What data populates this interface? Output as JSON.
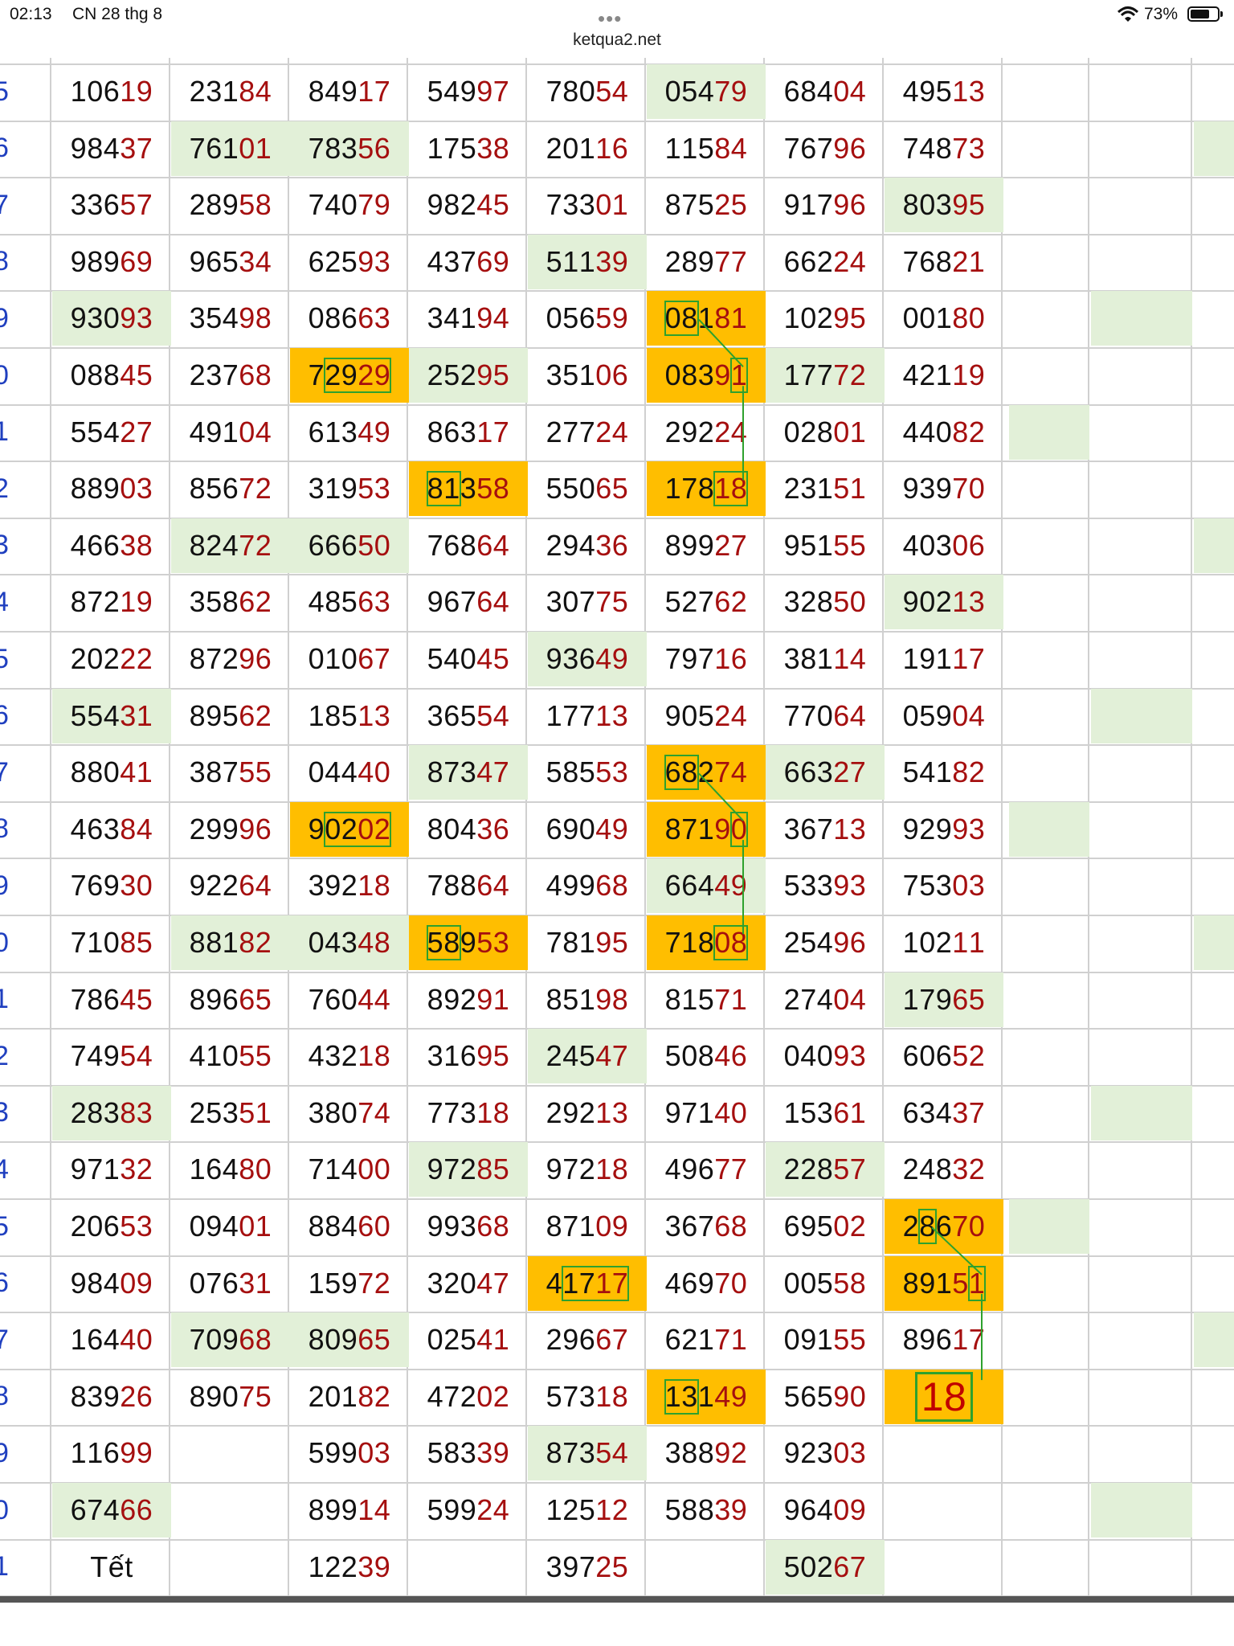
{
  "status_bar": {
    "time": "02:13",
    "date": "CN 28 thg 8",
    "dots": "•••",
    "url": "ketqua2.net",
    "battery": "73%",
    "wifi_icon": "wifi-icon",
    "battery_icon": "battery-icon",
    "battery_level": 0.73
  },
  "colors": {
    "green": "#e2f0d8",
    "orange": "#ffbe00",
    "red_digits": "#a50f0f",
    "blue_labels": "#1f3fbf",
    "link_green": "#2ea12e"
  },
  "rows": [
    {
      "label": "5",
      "cells": [
        {
          "v": "10619"
        },
        {
          "v": "23184"
        },
        {
          "v": "84917"
        },
        {
          "v": "54997"
        },
        {
          "v": "78054"
        },
        {
          "v": "05479",
          "bg": "green"
        },
        {
          "v": "68404"
        },
        {
          "v": "49513"
        }
      ]
    },
    {
      "label": "6",
      "cells": [
        {
          "v": "98437"
        },
        {
          "v": "76101",
          "bg": "green"
        },
        {
          "v": "78356",
          "bg": "green"
        },
        {
          "v": "17538"
        },
        {
          "v": "20116"
        },
        {
          "v": "11584"
        },
        {
          "v": "76796"
        },
        {
          "v": "74873"
        }
      ],
      "extra2": "green"
    },
    {
      "label": "7",
      "cells": [
        {
          "v": "33657"
        },
        {
          "v": "28958"
        },
        {
          "v": "74079"
        },
        {
          "v": "98245"
        },
        {
          "v": "73301"
        },
        {
          "v": "87525"
        },
        {
          "v": "91796"
        },
        {
          "v": "80395",
          "bg": "green"
        }
      ]
    },
    {
      "label": "8",
      "cells": [
        {
          "v": "98969"
        },
        {
          "v": "96534"
        },
        {
          "v": "62593"
        },
        {
          "v": "43769"
        },
        {
          "v": "51139",
          "bg": "green"
        },
        {
          "v": "28977"
        },
        {
          "v": "66224"
        },
        {
          "v": "76821"
        }
      ]
    },
    {
      "label": "9",
      "cells": [
        {
          "v": "93093",
          "bg": "green"
        },
        {
          "v": "35498"
        },
        {
          "v": "08663"
        },
        {
          "v": "34194"
        },
        {
          "v": "05659"
        },
        {
          "v": "08181",
          "bg": "orange",
          "box": [
            0,
            2
          ]
        },
        {
          "v": "10295"
        },
        {
          "v": "00180"
        }
      ],
      "extra1": "green"
    },
    {
      "label": "0",
      "cells": [
        {
          "v": "08845"
        },
        {
          "v": "23768"
        },
        {
          "v": "72929",
          "bg": "orange",
          "box": [
            1,
            5
          ]
        },
        {
          "v": "25295",
          "bg": "green"
        },
        {
          "v": "35106"
        },
        {
          "v": "08391",
          "bg": "orange",
          "box": [
            4,
            5
          ]
        },
        {
          "v": "17772",
          "bg": "green"
        },
        {
          "v": "42119"
        }
      ]
    },
    {
      "label": "1",
      "cells": [
        {
          "v": "55427"
        },
        {
          "v": "49104"
        },
        {
          "v": "61349"
        },
        {
          "v": "86317"
        },
        {
          "v": "27724"
        },
        {
          "v": "29224"
        },
        {
          "v": "02801"
        },
        {
          "v": "44082"
        }
      ],
      "extra0": "green"
    },
    {
      "label": "2",
      "cells": [
        {
          "v": "88903"
        },
        {
          "v": "85672"
        },
        {
          "v": "31953"
        },
        {
          "v": "81358",
          "bg": "orange",
          "box": [
            0,
            2
          ]
        },
        {
          "v": "55065"
        },
        {
          "v": "17818",
          "bg": "orange",
          "box": [
            3,
            5
          ]
        },
        {
          "v": "23151"
        },
        {
          "v": "93970"
        }
      ]
    },
    {
      "label": "3",
      "cells": [
        {
          "v": "46638"
        },
        {
          "v": "82472",
          "bg": "green"
        },
        {
          "v": "66650",
          "bg": "green"
        },
        {
          "v": "76864"
        },
        {
          "v": "29436"
        },
        {
          "v": "89927"
        },
        {
          "v": "95155"
        },
        {
          "v": "40306"
        }
      ],
      "extra2": "green"
    },
    {
      "label": "4",
      "cells": [
        {
          "v": "87219"
        },
        {
          "v": "35862"
        },
        {
          "v": "48563"
        },
        {
          "v": "96764"
        },
        {
          "v": "30775"
        },
        {
          "v": "52762"
        },
        {
          "v": "32850"
        },
        {
          "v": "90213",
          "bg": "green"
        }
      ]
    },
    {
      "label": "5",
      "cells": [
        {
          "v": "20222"
        },
        {
          "v": "87296"
        },
        {
          "v": "01067"
        },
        {
          "v": "54045"
        },
        {
          "v": "93649",
          "bg": "green"
        },
        {
          "v": "79716"
        },
        {
          "v": "38114"
        },
        {
          "v": "19117"
        }
      ]
    },
    {
      "label": "6",
      "cells": [
        {
          "v": "55431",
          "bg": "green"
        },
        {
          "v": "89562"
        },
        {
          "v": "18513"
        },
        {
          "v": "36554"
        },
        {
          "v": "17713"
        },
        {
          "v": "90524"
        },
        {
          "v": "77064"
        },
        {
          "v": "05904"
        }
      ],
      "extra1": "green"
    },
    {
      "label": "7",
      "cells": [
        {
          "v": "88041"
        },
        {
          "v": "38755"
        },
        {
          "v": "04440"
        },
        {
          "v": "87347",
          "bg": "green"
        },
        {
          "v": "58553"
        },
        {
          "v": "68274",
          "bg": "orange",
          "box": [
            0,
            2
          ]
        },
        {
          "v": "66327",
          "bg": "green"
        },
        {
          "v": "54182"
        }
      ]
    },
    {
      "label": "8",
      "cells": [
        {
          "v": "46384"
        },
        {
          "v": "29996"
        },
        {
          "v": "90202",
          "bg": "orange",
          "box": [
            1,
            5
          ]
        },
        {
          "v": "80436"
        },
        {
          "v": "69049"
        },
        {
          "v": "87190",
          "bg": "orange",
          "box": [
            4,
            5
          ]
        },
        {
          "v": "36713"
        },
        {
          "v": "92993"
        }
      ],
      "extra0": "green"
    },
    {
      "label": "9",
      "cells": [
        {
          "v": "76930"
        },
        {
          "v": "92264"
        },
        {
          "v": "39218"
        },
        {
          "v": "78864"
        },
        {
          "v": "49968"
        },
        {
          "v": "66449",
          "bg": "green"
        },
        {
          "v": "53393"
        },
        {
          "v": "75303"
        }
      ]
    },
    {
      "label": "0",
      "cells": [
        {
          "v": "71085"
        },
        {
          "v": "88182",
          "bg": "green"
        },
        {
          "v": "04348",
          "bg": "green"
        },
        {
          "v": "58953",
          "bg": "orange",
          "box": [
            0,
            2
          ]
        },
        {
          "v": "78195"
        },
        {
          "v": "71808",
          "bg": "orange",
          "box": [
            3,
            5
          ]
        },
        {
          "v": "25496"
        },
        {
          "v": "10211"
        }
      ],
      "extra2": "green"
    },
    {
      "label": "1",
      "cells": [
        {
          "v": "78645"
        },
        {
          "v": "89665"
        },
        {
          "v": "76044"
        },
        {
          "v": "89291"
        },
        {
          "v": "85198"
        },
        {
          "v": "81571"
        },
        {
          "v": "27404"
        },
        {
          "v": "17965",
          "bg": "green"
        }
      ]
    },
    {
      "label": "2",
      "cells": [
        {
          "v": "74954"
        },
        {
          "v": "41055"
        },
        {
          "v": "43218"
        },
        {
          "v": "31695"
        },
        {
          "v": "24547",
          "bg": "green"
        },
        {
          "v": "50846"
        },
        {
          "v": "04093"
        },
        {
          "v": "60652"
        }
      ]
    },
    {
      "label": "3",
      "cells": [
        {
          "v": "28383",
          "bg": "green"
        },
        {
          "v": "25351"
        },
        {
          "v": "38074"
        },
        {
          "v": "77318"
        },
        {
          "v": "29213"
        },
        {
          "v": "97140"
        },
        {
          "v": "15361"
        },
        {
          "v": "63437"
        }
      ],
      "extra1": "green"
    },
    {
      "label": "4",
      "cells": [
        {
          "v": "97132"
        },
        {
          "v": "16480"
        },
        {
          "v": "71400"
        },
        {
          "v": "97285",
          "bg": "green"
        },
        {
          "v": "97218"
        },
        {
          "v": "49677"
        },
        {
          "v": "22857",
          "bg": "green"
        },
        {
          "v": "24832"
        }
      ]
    },
    {
      "label": "5",
      "cells": [
        {
          "v": "20653"
        },
        {
          "v": "09401"
        },
        {
          "v": "88460"
        },
        {
          "v": "99368"
        },
        {
          "v": "87109"
        },
        {
          "v": "36768"
        },
        {
          "v": "69502"
        },
        {
          "v": "28670",
          "bg": "orange",
          "box": [
            1,
            2
          ]
        }
      ],
      "extra0": "green"
    },
    {
      "label": "6",
      "cells": [
        {
          "v": "98409"
        },
        {
          "v": "07631"
        },
        {
          "v": "15972"
        },
        {
          "v": "32047"
        },
        {
          "v": "41717",
          "bg": "orange",
          "box": [
            1,
            5
          ]
        },
        {
          "v": "46970"
        },
        {
          "v": "00558"
        },
        {
          "v": "89151",
          "bg": "orange",
          "box": [
            4,
            5
          ]
        }
      ]
    },
    {
      "label": "7",
      "cells": [
        {
          "v": "16440"
        },
        {
          "v": "70968",
          "bg": "green"
        },
        {
          "v": "80965",
          "bg": "green"
        },
        {
          "v": "02541"
        },
        {
          "v": "29667"
        },
        {
          "v": "62171"
        },
        {
          "v": "09155"
        },
        {
          "v": "89617"
        }
      ],
      "extra2": "green"
    },
    {
      "label": "8",
      "cells": [
        {
          "v": "83926"
        },
        {
          "v": "89075"
        },
        {
          "v": "20182"
        },
        {
          "v": "47202"
        },
        {
          "v": "57318"
        },
        {
          "v": "13149",
          "bg": "orange",
          "box": [
            0,
            2
          ]
        },
        {
          "v": "56590"
        },
        {
          "v": "18",
          "bg": "orange",
          "box": [
            0,
            2
          ],
          "big": true
        }
      ]
    },
    {
      "label": "9",
      "cells": [
        {
          "v": "11699"
        },
        {
          "v": ""
        },
        {
          "v": "59903"
        },
        {
          "v": "58339"
        },
        {
          "v": "87354",
          "bg": "green"
        },
        {
          "v": "38892"
        },
        {
          "v": "92303"
        },
        {
          "v": ""
        }
      ]
    },
    {
      "label": "0",
      "cells": [
        {
          "v": "67466",
          "bg": "green"
        },
        {
          "v": ""
        },
        {
          "v": "89914"
        },
        {
          "v": "59924"
        },
        {
          "v": "12512"
        },
        {
          "v": "58839"
        },
        {
          "v": "96409"
        },
        {
          "v": ""
        }
      ],
      "extra1": "green"
    },
    {
      "label": "1",
      "cells": [
        {
          "v": "Tết",
          "plain": true
        },
        {
          "v": ""
        },
        {
          "v": "12239"
        },
        {
          "v": ""
        },
        {
          "v": "39725"
        },
        {
          "v": ""
        },
        {
          "v": "50267",
          "bg": "green"
        },
        {
          "v": ""
        }
      ]
    }
  ]
}
